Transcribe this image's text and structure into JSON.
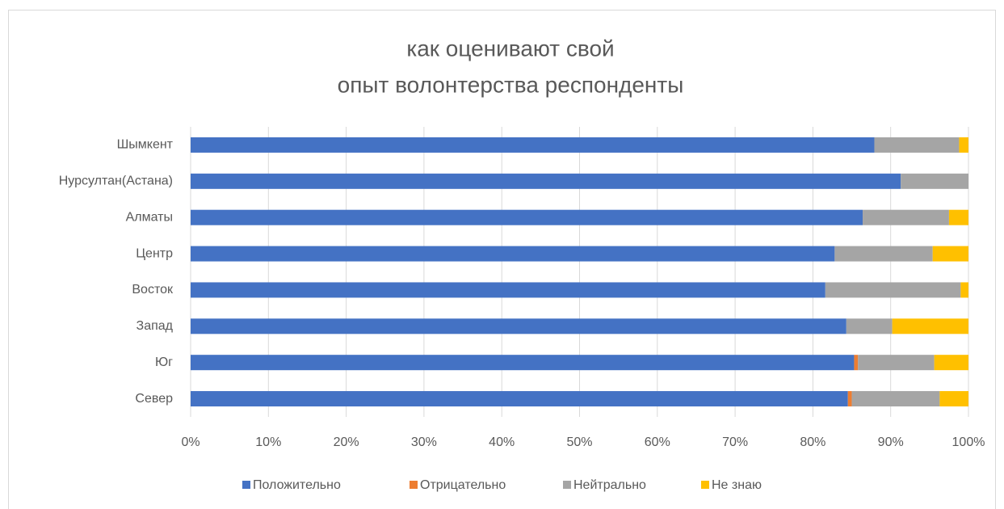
{
  "chart_data": {
    "type": "stacked-bar-horizontal",
    "title": [
      "как оценивают свой",
      "опыт волонтерства респонденты"
    ],
    "categories": [
      "Север",
      "Юг",
      "Запад",
      "Восток",
      "Центр",
      "Алматы",
      "Нурсултан(Астана)",
      "Шымкент"
    ],
    "series": [
      {
        "name": "Положительно",
        "color": "#4472c4",
        "values": [
          84.5,
          85.3,
          84.3,
          81.6,
          82.8,
          86.4,
          91.3,
          87.9
        ]
      },
      {
        "name": "Отрицательно",
        "color": "#ed7d31",
        "values": [
          0.5,
          0.5,
          0,
          0,
          0,
          0,
          0,
          0
        ]
      },
      {
        "name": "Нейтрально",
        "color": "#a5a5a5",
        "values": [
          11.3,
          9.8,
          5.9,
          17.4,
          12.6,
          11.1,
          8.7,
          10.9
        ]
      },
      {
        "name": "Не знаю",
        "color": "#ffc000",
        "values": [
          3.7,
          4.4,
          9.8,
          1.0,
          4.6,
          2.5,
          0,
          1.2
        ]
      }
    ],
    "xlim": [
      0,
      100
    ],
    "xticks": [
      {
        "value": 0,
        "label": "0%"
      },
      {
        "value": 10,
        "label": "10%"
      },
      {
        "value": 20,
        "label": "20%"
      },
      {
        "value": 30,
        "label": "30%"
      },
      {
        "value": 40,
        "label": "40%"
      },
      {
        "value": 50,
        "label": "50%"
      },
      {
        "value": 60,
        "label": "60%"
      },
      {
        "value": 70,
        "label": "70%"
      },
      {
        "value": 80,
        "label": "80%"
      },
      {
        "value": 90,
        "label": "90%"
      },
      {
        "value": 100,
        "label": "100%"
      }
    ],
    "grid": true,
    "legend": "bottom"
  }
}
